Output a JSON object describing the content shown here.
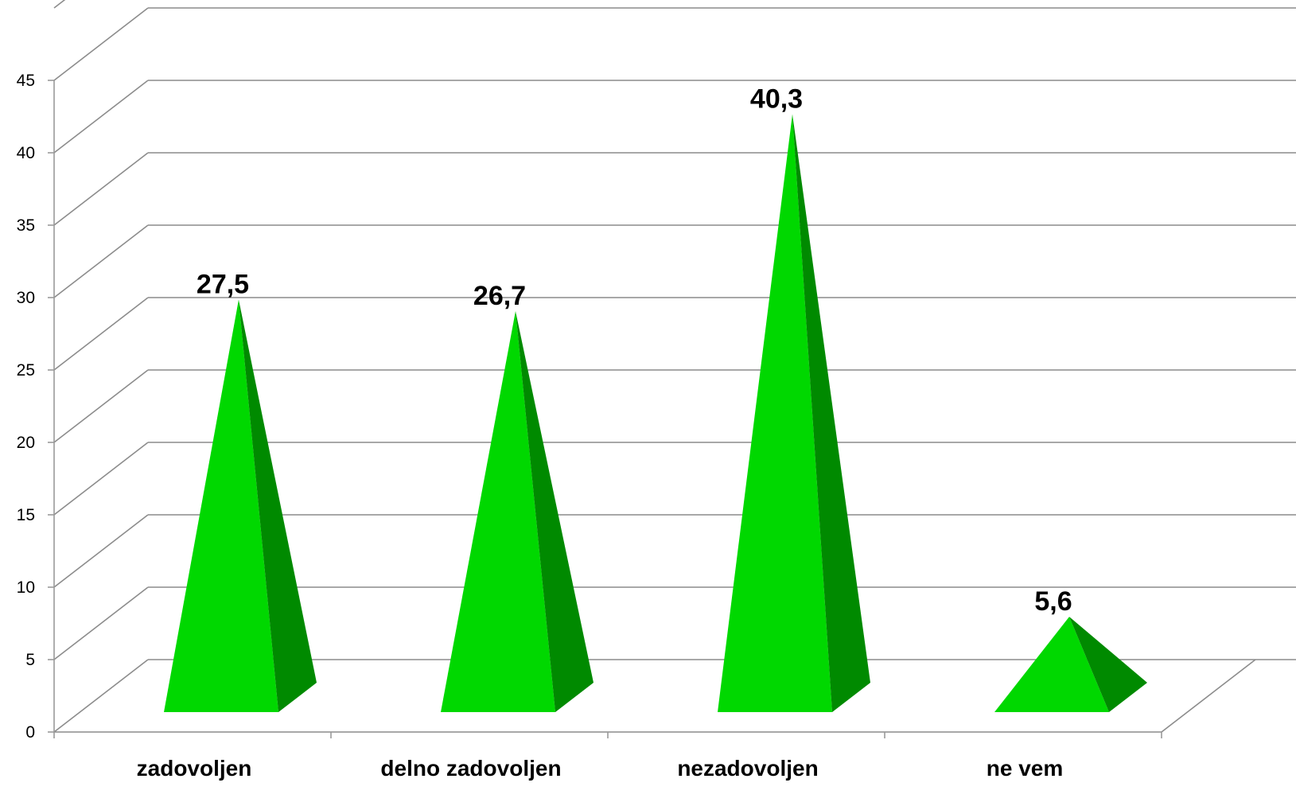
{
  "chart_data": {
    "type": "bar",
    "bar_shape": "pyramid-3d",
    "categories": [
      "zadovoljen",
      "delno zadovoljen",
      "nezadovoljen",
      "ne vem"
    ],
    "values": [
      27.5,
      26.7,
      40.3,
      5.6
    ],
    "data_labels": [
      "27,5",
      "26,7",
      "40,3",
      "5,6"
    ],
    "ylim": [
      0,
      50
    ],
    "y_ticks": [
      0,
      5,
      10,
      15,
      20,
      25,
      30,
      35,
      40,
      45
    ],
    "y_tick_labels": [
      "0",
      "5",
      "10",
      "15",
      "20",
      "25",
      "30",
      "35",
      "40",
      "45"
    ],
    "grid": true,
    "legend": "none",
    "colors": {
      "front_face": "#00d800",
      "side_face": "#008a00",
      "gridline": "#8c8c8c",
      "axis": "#9a9a9a",
      "text": "#000000"
    }
  }
}
